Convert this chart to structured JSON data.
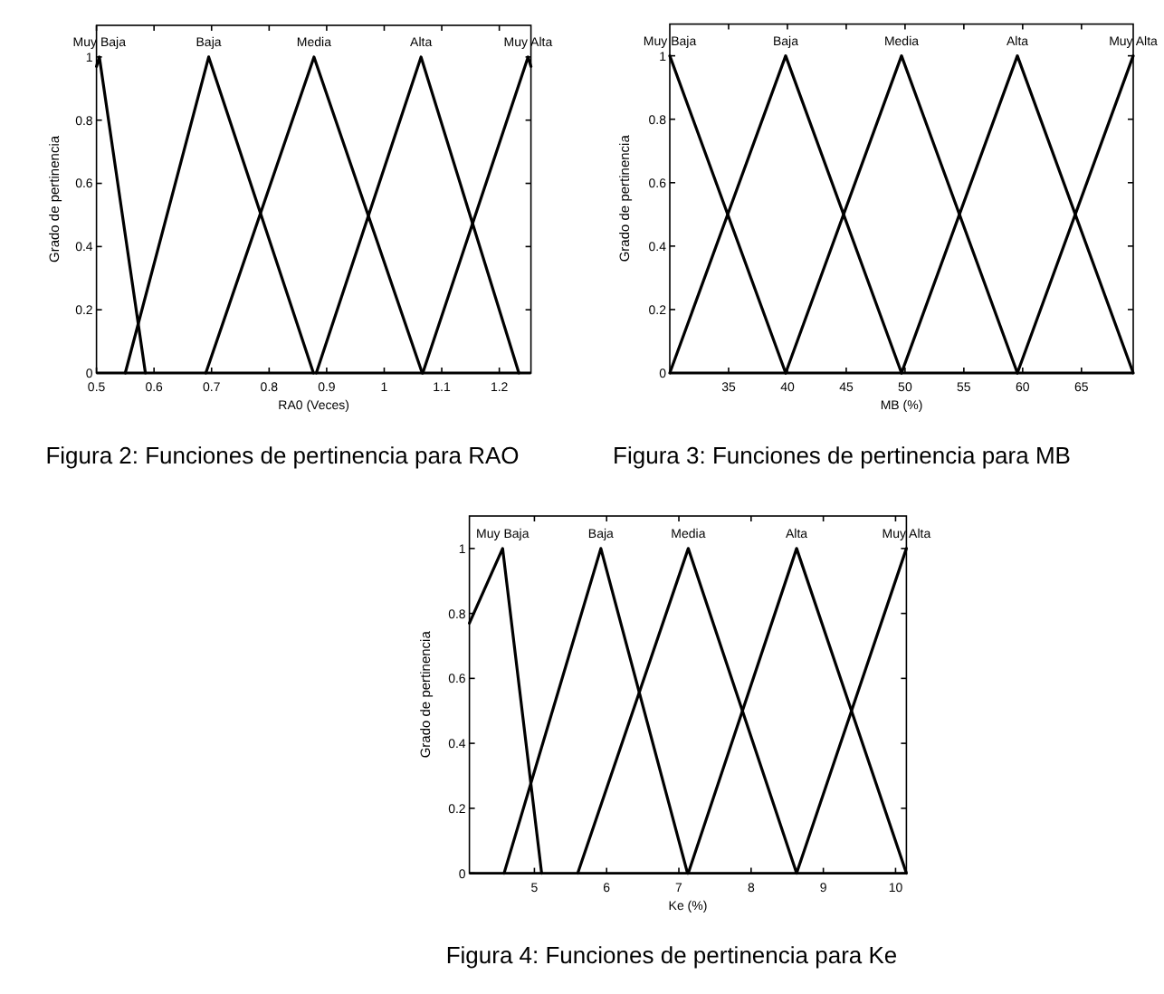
{
  "chart_data": [
    {
      "type": "line",
      "xlabel": "RA0 (Veces)",
      "ylabel": "Grado de pertinencia",
      "xlim": [
        0.5,
        1.255
      ],
      "xticks": [
        0.5,
        0.6,
        0.7,
        0.8,
        0.9,
        1,
        1.1,
        1.2
      ],
      "ylim": [
        0,
        1.1
      ],
      "yticks": [
        0,
        0.2,
        0.4,
        0.6,
        0.8,
        1
      ],
      "legend": "top",
      "series": [
        {
          "name": "Muy Baja",
          "color": "#000000",
          "x": [
            0.5,
            0.505,
            0.585
          ],
          "values": [
            0.97,
            1,
            0
          ]
        },
        {
          "name": "Baja",
          "color": "#000000",
          "x": [
            0.55,
            0.695,
            0.877
          ],
          "values": [
            0,
            1,
            0
          ]
        },
        {
          "name": "Media",
          "color": "#000000",
          "x": [
            0.69,
            0.878,
            1.066
          ],
          "values": [
            0,
            1,
            0
          ]
        },
        {
          "name": "Alta",
          "color": "#000000",
          "x": [
            0.882,
            1.064,
            1.234
          ],
          "values": [
            0,
            1,
            0
          ]
        },
        {
          "name": "Muy Alta",
          "color": "#000000",
          "x": [
            1.067,
            1.25,
            1.255
          ],
          "values": [
            0,
            1,
            0.97
          ]
        }
      ],
      "annotations": [
        "Figura 2: Funciones de pertinencia para RAO"
      ]
    },
    {
      "type": "line",
      "xlabel": "MB (%)",
      "ylabel": "Grado de pertinencia",
      "xlim": [
        30,
        69.4
      ],
      "xticks": [
        35,
        40,
        45,
        50,
        55,
        60,
        65
      ],
      "ylim": [
        0,
        1.1
      ],
      "yticks": [
        0,
        0.2,
        0.4,
        0.6,
        0.8,
        1
      ],
      "legend": "top",
      "series": [
        {
          "name": "Muy Baja",
          "color": "#000000",
          "x": [
            30,
            39.85
          ],
          "values": [
            1,
            0
          ]
        },
        {
          "name": "Baja",
          "color": "#000000",
          "x": [
            30,
            39.85,
            49.7
          ],
          "values": [
            0,
            1,
            0
          ]
        },
        {
          "name": "Media",
          "color": "#000000",
          "x": [
            39.85,
            49.7,
            59.55
          ],
          "values": [
            0,
            1,
            0
          ]
        },
        {
          "name": "Alta",
          "color": "#000000",
          "x": [
            49.7,
            59.55,
            69.4
          ],
          "values": [
            0,
            1,
            0
          ]
        },
        {
          "name": "Muy Alta",
          "color": "#000000",
          "x": [
            59.55,
            69.4
          ],
          "values": [
            0,
            1
          ]
        }
      ],
      "annotations": [
        "Figura 3: Funciones de pertinencia para MB"
      ]
    },
    {
      "type": "line",
      "xlabel": "Ke (%)",
      "ylabel": "Grado de pertinencia",
      "xlim": [
        4.1,
        10.15
      ],
      "xticks": [
        5,
        6,
        7,
        8,
        9,
        10
      ],
      "ylim": [
        0,
        1.1
      ],
      "yticks": [
        0,
        0.2,
        0.4,
        0.6,
        0.8,
        1
      ],
      "legend": "top",
      "series": [
        {
          "name": "Muy Baja",
          "color": "#000000",
          "x": [
            4.1,
            4.56,
            5.1
          ],
          "values": [
            0.77,
            1,
            0
          ]
        },
        {
          "name": "Baja",
          "color": "#000000",
          "x": [
            4.58,
            5.92,
            7.12
          ],
          "values": [
            0,
            1,
            0
          ]
        },
        {
          "name": "Media",
          "color": "#000000",
          "x": [
            5.6,
            7.13,
            8.63
          ],
          "values": [
            0,
            1,
            0
          ]
        },
        {
          "name": "Alta",
          "color": "#000000",
          "x": [
            7.13,
            8.63,
            10.15
          ],
          "values": [
            0,
            1,
            0
          ]
        },
        {
          "name": "Muy Alta",
          "color": "#000000",
          "x": [
            8.63,
            10.15
          ],
          "values": [
            0,
            1
          ]
        }
      ],
      "annotations": [
        "Figura 4: Funciones de pertinencia para Ke"
      ]
    }
  ]
}
